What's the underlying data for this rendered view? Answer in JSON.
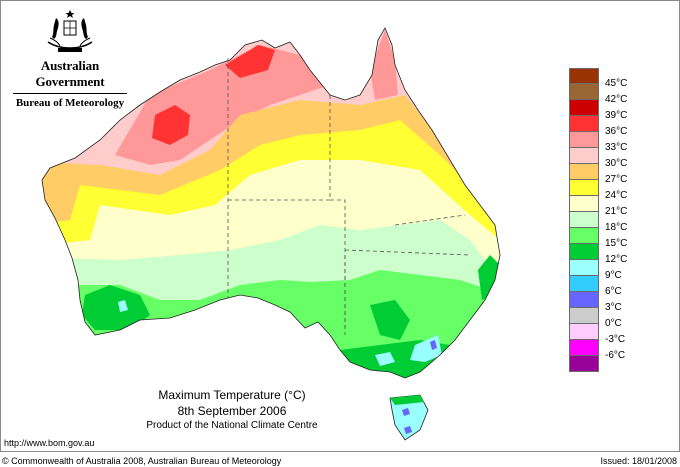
{
  "header": {
    "government": "Australian Government",
    "agency": "Bureau of Meteorology",
    "logo_icon": "coat-of-arms-icon"
  },
  "caption": {
    "title": "Maximum Temperature (°C)",
    "date": "8th September 2006",
    "product": "Product of the National Climate Centre"
  },
  "footer": {
    "url": "http://www.bom.gov.au",
    "copyright": "© Commonwealth of Australia 2008, Australian Bureau of Meteorology",
    "issued": "Issued: 18/01/2008"
  },
  "legend": {
    "unit": "°C",
    "bins": [
      {
        "label": "45°C",
        "color": "#993300"
      },
      {
        "label": "42°C",
        "color": "#996633"
      },
      {
        "label": "39°C",
        "color": "#cc0000"
      },
      {
        "label": "36°C",
        "color": "#ff3333"
      },
      {
        "label": "33°C",
        "color": "#ff9999"
      },
      {
        "label": "30°C",
        "color": "#ffcccc"
      },
      {
        "label": "27°C",
        "color": "#ffcc66"
      },
      {
        "label": "24°C",
        "color": "#ffff33"
      },
      {
        "label": "21°C",
        "color": "#ffffcc"
      },
      {
        "label": "18°C",
        "color": "#ccffcc"
      },
      {
        "label": "15°C",
        "color": "#66ff66"
      },
      {
        "label": "12°C",
        "color": "#00cc33"
      },
      {
        "label": "9°C",
        "color": "#99ffff"
      },
      {
        "label": "6°C",
        "color": "#33ccff"
      },
      {
        "label": "3°C",
        "color": "#6666ff"
      },
      {
        "label": "0°C",
        "color": "#cccccc"
      },
      {
        "label": "-3°C",
        "color": "#ffccff"
      },
      {
        "label": "-6°C",
        "color": "#ff00ff"
      },
      {
        "label": "",
        "color": "#990099"
      }
    ]
  },
  "map": {
    "region": "Australia",
    "variable": "Maximum Temperature",
    "zones": {
      "north_hot": "#ff9999",
      "kimberley_hotspot": "#ff3333",
      "pilbara_hotspot": "#ff3333",
      "north_warm": "#ffcccc",
      "tropic_band": "#ffcc66",
      "central_band": "#ffff33",
      "interior": "#ffffcc",
      "south_mild": "#ccffcc",
      "south_cool": "#66ff66",
      "southwest_cool": "#00cc33",
      "alpine": "#99ffff",
      "alpine_peak": "#6666ff"
    }
  }
}
